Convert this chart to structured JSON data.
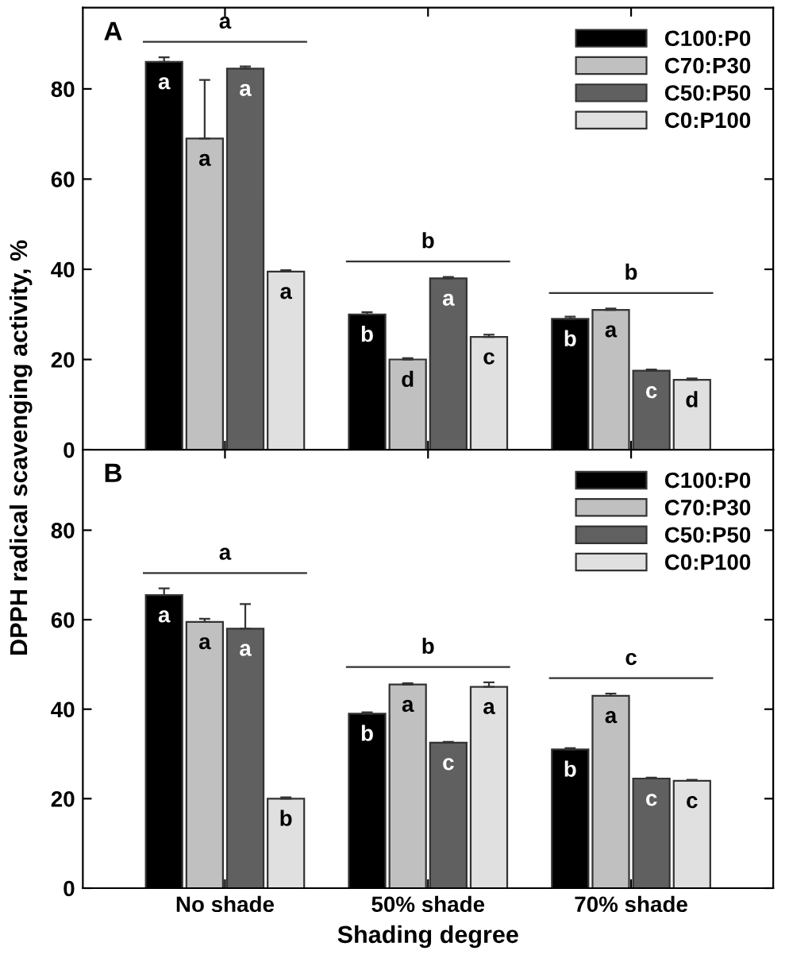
{
  "chart_data": [
    {
      "type": "bar",
      "title": "A",
      "ylabel": "DPPH radical scavenging activity, %",
      "categories": [
        null,
        null,
        null
      ],
      "ylim": [
        0,
        98
      ],
      "yticks": [
        0,
        20,
        40,
        60,
        80
      ],
      "legend": "top right",
      "grid": false,
      "tick_labels": "y",
      "series": [
        {
          "name": "C100:P0",
          "color": "#000000",
          "values": [
            86,
            30,
            29
          ],
          "errors": [
            1,
            0.5,
            0.5
          ],
          "value_labels": [
            "a",
            "b",
            "b"
          ]
        },
        {
          "name": "C70:P30",
          "color": "#c0c0c0",
          "values": [
            69,
            20,
            31
          ],
          "errors": [
            13,
            0.3,
            0.3
          ],
          "value_labels": [
            "a",
            "d",
            "a"
          ]
        },
        {
          "name": "C50:P50",
          "color": "#606060",
          "values": [
            84.5,
            38,
            17.5
          ],
          "errors": [
            0.5,
            0.3,
            0.3
          ],
          "value_labels": [
            "a",
            "a",
            "c"
          ]
        },
        {
          "name": "C0:P100",
          "color": "#e0e0e0",
          "values": [
            39.5,
            25,
            15.5
          ],
          "errors": [
            0.3,
            0.5,
            0.3
          ],
          "value_labels": [
            "a",
            "c",
            "d"
          ]
        }
      ],
      "annotations": [
        "a",
        "b",
        "b"
      ]
    },
    {
      "type": "bar",
      "title": "B",
      "xlabel": "Shading degree",
      "categories": [
        "No shade",
        "50% shade",
        "70% shade"
      ],
      "ylim": [
        0,
        98
      ],
      "yticks": [
        0,
        20,
        40,
        60,
        80
      ],
      "legend": "top right",
      "grid": false,
      "series": [
        {
          "name": "C100:P0",
          "color": "#000000",
          "values": [
            65.5,
            39,
            31
          ],
          "errors": [
            1.5,
            0.3,
            0.3
          ],
          "value_labels": [
            "a",
            "b",
            "b"
          ]
        },
        {
          "name": "C70:P30",
          "color": "#c0c0c0",
          "values": [
            59.5,
            45.5,
            43
          ],
          "errors": [
            0.7,
            0.3,
            0.5
          ],
          "value_labels": [
            "a",
            "a",
            "a"
          ]
        },
        {
          "name": "C50:P50",
          "color": "#606060",
          "values": [
            58,
            32.5,
            24.5
          ],
          "errors": [
            5.5,
            0.2,
            0.2
          ],
          "value_labels": [
            "a",
            "c",
            "c"
          ]
        },
        {
          "name": "C0:P100",
          "color": "#e0e0e0",
          "values": [
            20,
            45,
            24
          ],
          "errors": [
            0.3,
            1,
            0.2
          ],
          "value_labels": [
            "b",
            "a",
            "c"
          ]
        }
      ],
      "annotations": [
        "a",
        "b",
        "c"
      ]
    }
  ]
}
